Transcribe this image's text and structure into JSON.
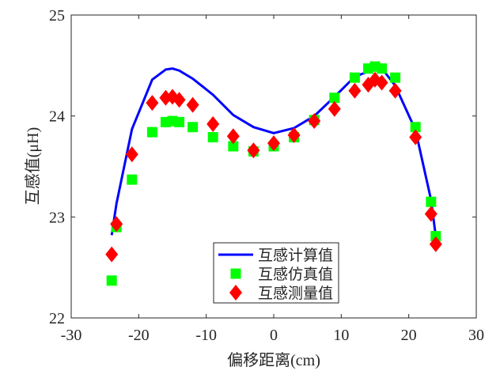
{
  "chart_data": {
    "type": "line",
    "xlabel": "偏移距离(cm)",
    "ylabel": "互感值(μH)",
    "xlim": [
      -30,
      30
    ],
    "ylim": [
      22,
      25
    ],
    "xticks": [
      -30,
      -20,
      -10,
      0,
      10,
      20,
      30
    ],
    "yticks": [
      22,
      23,
      24,
      25
    ],
    "grid": false,
    "legend_position": "bottom-center",
    "series": [
      {
        "name": "互感计算值",
        "style": "line",
        "color": "#0000ff",
        "x": [
          -24,
          -23.3,
          -21,
          -18,
          -16,
          -15,
          -14,
          -12,
          -9,
          -6,
          -3,
          0,
          3,
          6,
          9,
          12,
          14,
          15,
          16.5,
          18,
          21,
          23.3,
          24
        ],
        "y": [
          22.82,
          23.13,
          23.87,
          24.36,
          24.46,
          24.47,
          24.45,
          24.37,
          24.21,
          24.01,
          23.89,
          23.83,
          23.88,
          24.0,
          24.19,
          24.39,
          24.44,
          24.46,
          24.43,
          24.3,
          23.86,
          23.17,
          22.81
        ]
      },
      {
        "name": "互感仿真值",
        "style": "square",
        "color": "#00ff00",
        "x": [
          -24,
          -23.3,
          -21,
          -18,
          -16,
          -15,
          -14,
          -12,
          -9,
          -6,
          -3,
          0,
          3,
          6,
          9,
          12,
          14,
          15,
          16,
          18,
          21,
          23.3,
          24
        ],
        "y": [
          22.37,
          22.9,
          23.37,
          23.84,
          23.94,
          23.95,
          23.94,
          23.89,
          23.79,
          23.7,
          23.65,
          23.7,
          23.79,
          23.96,
          24.18,
          24.38,
          24.47,
          24.49,
          24.47,
          24.38,
          23.89,
          23.15,
          22.81
        ]
      },
      {
        "name": "互感测量值",
        "style": "diamond",
        "color": "#ff0000",
        "x": [
          -24,
          -23.3,
          -21,
          -18,
          -16,
          -15,
          -14,
          -12,
          -9,
          -6,
          -3,
          0,
          3,
          6,
          9,
          12,
          14,
          15,
          16,
          18,
          21,
          23.3,
          24
        ],
        "y": [
          22.63,
          22.93,
          23.62,
          24.13,
          24.18,
          24.19,
          24.16,
          24.11,
          23.92,
          23.8,
          23.66,
          23.73,
          23.81,
          23.95,
          24.07,
          24.25,
          24.31,
          24.36,
          24.33,
          24.25,
          23.79,
          23.03,
          22.73
        ]
      }
    ]
  }
}
